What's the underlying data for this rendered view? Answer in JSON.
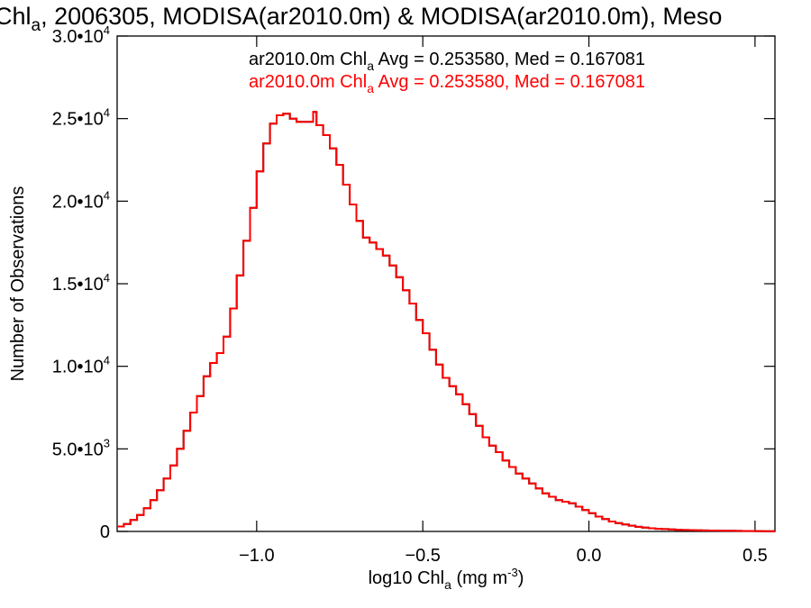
{
  "chart_data": {
    "type": "line",
    "title_main": "Chl",
    "title_sub": "a",
    "title_rest": ", 2006305, MODISA(ar2010.0m) & MODISA(ar2010.0m), Meso",
    "xlabel_prefix": "log10 Chl",
    "xlabel_sub": "a",
    "xlabel_unit": " (mg m",
    "xlabel_sup": "-3",
    "xlabel_end": ")",
    "ylabel": "Number of Observations",
    "xlim": [
      -1.42,
      0.56
    ],
    "ylim": [
      0,
      30000
    ],
    "x_ticks": [
      {
        "value": -1.0,
        "label": "−1.0"
      },
      {
        "value": -0.5,
        "label": "−0.5"
      },
      {
        "value": 0.0,
        "label": "0.0"
      },
      {
        "value": 0.5,
        "label": "0.5"
      }
    ],
    "y_ticks": [
      {
        "value": 0,
        "mant": "0",
        "exp": ""
      },
      {
        "value": 5000,
        "mant": "5.0•10",
        "exp": "3"
      },
      {
        "value": 10000,
        "mant": "1.0•10",
        "exp": "4"
      },
      {
        "value": 15000,
        "mant": "1.5•10",
        "exp": "4"
      },
      {
        "value": 20000,
        "mant": "2.0•10",
        "exp": "4"
      },
      {
        "value": 25000,
        "mant": "2.5•10",
        "exp": "4"
      },
      {
        "value": 30000,
        "mant": "3.0•10",
        "exp": "4"
      }
    ],
    "legend": [
      {
        "prefix": "ar2010.0m Chl",
        "sub": "a",
        "rest": " Avg = 0.253580, Med = 0.167081",
        "color": "#000000"
      },
      {
        "prefix": "ar2010.0m Chl",
        "sub": "a",
        "rest": " Avg = 0.253580, Med = 0.167081",
        "color": "#ff0000"
      }
    ],
    "series": [
      {
        "color": "#000000",
        "x": [
          -1.42,
          -1.4,
          -1.38,
          -1.36,
          -1.34,
          -1.32,
          -1.3,
          -1.28,
          -1.26,
          -1.24,
          -1.22,
          -1.2,
          -1.18,
          -1.16,
          -1.14,
          -1.12,
          -1.1,
          -1.08,
          -1.06,
          -1.04,
          -1.02,
          -1.0,
          -0.98,
          -0.96,
          -0.94,
          -0.92,
          -0.9,
          -0.88,
          -0.86,
          -0.84,
          -0.83,
          -0.82,
          -0.8,
          -0.78,
          -0.76,
          -0.74,
          -0.72,
          -0.7,
          -0.68,
          -0.66,
          -0.64,
          -0.62,
          -0.6,
          -0.58,
          -0.56,
          -0.54,
          -0.52,
          -0.5,
          -0.48,
          -0.46,
          -0.44,
          -0.42,
          -0.4,
          -0.38,
          -0.36,
          -0.34,
          -0.32,
          -0.3,
          -0.28,
          -0.26,
          -0.24,
          -0.22,
          -0.2,
          -0.18,
          -0.16,
          -0.14,
          -0.12,
          -0.1,
          -0.08,
          -0.06,
          -0.04,
          -0.02,
          0.0,
          0.02,
          0.04,
          0.06,
          0.08,
          0.1,
          0.12,
          0.14,
          0.16,
          0.18,
          0.2,
          0.22,
          0.24,
          0.26,
          0.28,
          0.3,
          0.32,
          0.34,
          0.36,
          0.38,
          0.4,
          0.42,
          0.44,
          0.46,
          0.48,
          0.5,
          0.52,
          0.54,
          0.56
        ],
        "y": [
          300,
          450,
          700,
          1000,
          1400,
          1900,
          2500,
          3200,
          4000,
          5000,
          6100,
          7200,
          8200,
          9400,
          10200,
          10800,
          11800,
          13500,
          15500,
          17600,
          19600,
          21800,
          23500,
          24700,
          25200,
          25300,
          25000,
          24800,
          24800,
          24800,
          25400,
          24600,
          24000,
          23200,
          22200,
          21000,
          19800,
          18800,
          17800,
          17500,
          17100,
          16700,
          16100,
          15400,
          14600,
          13800,
          12800,
          12000,
          11000,
          10100,
          9300,
          8800,
          8300,
          7700,
          7100,
          6400,
          5700,
          5200,
          4800,
          4300,
          3900,
          3500,
          3200,
          2900,
          2600,
          2300,
          2100,
          1900,
          1800,
          1700,
          1500,
          1300,
          1100,
          900,
          750,
          600,
          500,
          420,
          350,
          280,
          230,
          190,
          160,
          140,
          120,
          100,
          90,
          80,
          70,
          60,
          55,
          50,
          45,
          40,
          35,
          30,
          25,
          20,
          15,
          12,
          10
        ]
      },
      {
        "color": "#ff0000",
        "x": [
          -1.42,
          -1.4,
          -1.38,
          -1.36,
          -1.34,
          -1.32,
          -1.3,
          -1.28,
          -1.26,
          -1.24,
          -1.22,
          -1.2,
          -1.18,
          -1.16,
          -1.14,
          -1.12,
          -1.1,
          -1.08,
          -1.06,
          -1.04,
          -1.02,
          -1.0,
          -0.98,
          -0.96,
          -0.94,
          -0.92,
          -0.9,
          -0.88,
          -0.86,
          -0.84,
          -0.83,
          -0.82,
          -0.8,
          -0.78,
          -0.76,
          -0.74,
          -0.72,
          -0.7,
          -0.68,
          -0.66,
          -0.64,
          -0.62,
          -0.6,
          -0.58,
          -0.56,
          -0.54,
          -0.52,
          -0.5,
          -0.48,
          -0.46,
          -0.44,
          -0.42,
          -0.4,
          -0.38,
          -0.36,
          -0.34,
          -0.32,
          -0.3,
          -0.28,
          -0.26,
          -0.24,
          -0.22,
          -0.2,
          -0.18,
          -0.16,
          -0.14,
          -0.12,
          -0.1,
          -0.08,
          -0.06,
          -0.04,
          -0.02,
          0.0,
          0.02,
          0.04,
          0.06,
          0.08,
          0.1,
          0.12,
          0.14,
          0.16,
          0.18,
          0.2,
          0.22,
          0.24,
          0.26,
          0.28,
          0.3,
          0.32,
          0.34,
          0.36,
          0.38,
          0.4,
          0.42,
          0.44,
          0.46,
          0.48,
          0.5,
          0.52,
          0.54,
          0.56
        ],
        "y": [
          300,
          450,
          700,
          1000,
          1400,
          1900,
          2500,
          3200,
          4000,
          5000,
          6100,
          7200,
          8200,
          9400,
          10200,
          10800,
          11800,
          13500,
          15500,
          17600,
          19600,
          21800,
          23500,
          24700,
          25200,
          25300,
          25000,
          24800,
          24800,
          24800,
          25400,
          24600,
          24000,
          23200,
          22200,
          21000,
          19800,
          18800,
          17800,
          17500,
          17100,
          16700,
          16100,
          15400,
          14600,
          13800,
          12800,
          12000,
          11000,
          10100,
          9300,
          8800,
          8300,
          7700,
          7100,
          6400,
          5700,
          5200,
          4800,
          4300,
          3900,
          3500,
          3200,
          2900,
          2600,
          2300,
          2100,
          1900,
          1800,
          1700,
          1500,
          1300,
          1100,
          900,
          750,
          600,
          500,
          420,
          350,
          280,
          230,
          190,
          160,
          140,
          120,
          100,
          90,
          80,
          70,
          60,
          55,
          50,
          45,
          40,
          35,
          30,
          25,
          20,
          15,
          12,
          10
        ]
      }
    ]
  }
}
